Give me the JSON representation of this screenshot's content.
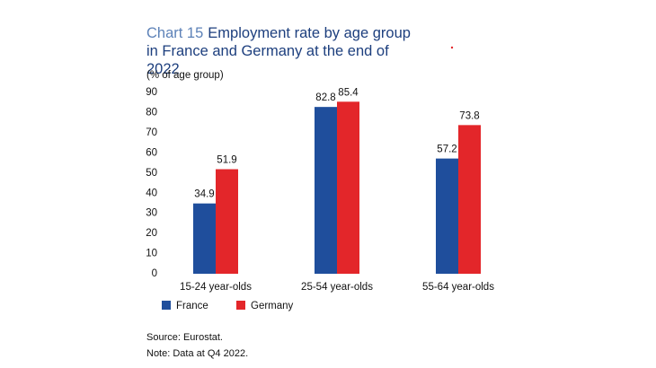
{
  "chart_data": {
    "type": "bar",
    "chart_label": "Chart 15",
    "title": "Employment rate by age group in France and Germany at the end of 2022",
    "y_axis_label": "(% of age group)",
    "categories": [
      "15-24 year-olds",
      "25-54 year-olds",
      "55-64 year-olds"
    ],
    "series": [
      {
        "name": "France",
        "color": "#1f4e9c",
        "values": [
          34.9,
          82.8,
          57.2
        ]
      },
      {
        "name": "Germany",
        "color": "#e3262a",
        "values": [
          51.9,
          85.4,
          73.8
        ]
      }
    ],
    "ylim": [
      0,
      90
    ],
    "yticks": [
      0,
      10,
      20,
      30,
      40,
      50,
      60,
      70,
      80,
      90
    ],
    "source": "Source: Eurostat.",
    "note": "Note: Data at Q4 2022."
  }
}
